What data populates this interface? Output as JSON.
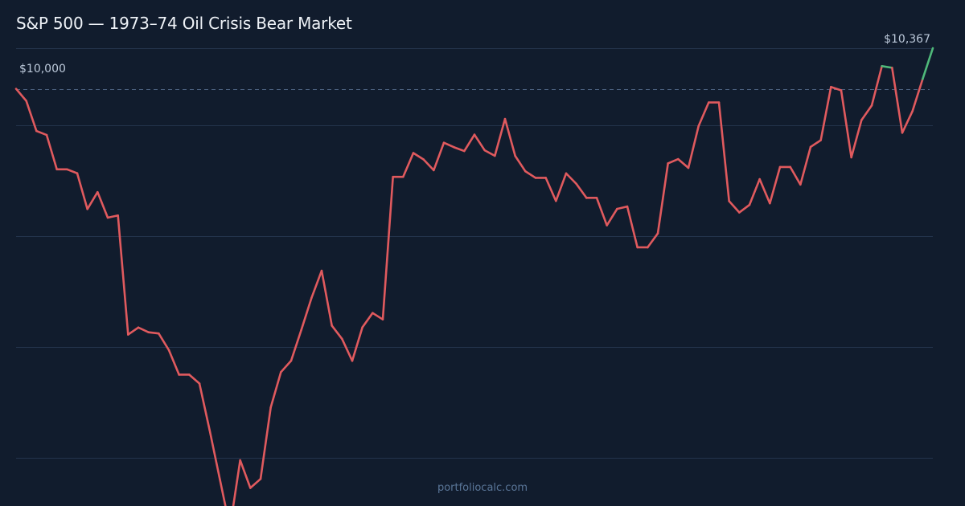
{
  "title": "S&P 500 — 1973–74 Oil Crisis Bear Market",
  "footer": {
    "brand": "portfoliocalc.com"
  },
  "colors": {
    "background": "#111c2d",
    "gridline": "#24344c",
    "baseline": "#4d6382",
    "loss_line": "#e05a5e",
    "gain_line": "#4fb97a",
    "label_text": "#bcc9da"
  },
  "chart_data": {
    "type": "line",
    "title": "S&P 500 — 1973–74 Oil Crisis Bear Market",
    "xlabel": "",
    "ylabel": "",
    "baseline": 10000,
    "baseline_label": "$10,000",
    "end_label": "$10,367",
    "ylim": [
      6300,
      10667
    ],
    "grid": true,
    "horizontal_gridlines": [
      10367,
      9667,
      8667,
      7667,
      6667
    ],
    "series": [
      {
        "values": [
          10000,
          9891,
          9619,
          9583,
          9273,
          9273,
          9237,
          8914,
          9067,
          8836,
          8856,
          7780,
          7844,
          7801,
          7790,
          7640,
          7418,
          7418,
          7338,
          6917,
          6476,
          6035,
          6645,
          6395,
          6476,
          7122,
          7441,
          7544,
          7822,
          8110,
          8357,
          7861,
          7741,
          7543,
          7846,
          7975,
          7917,
          9205,
          9205,
          9420,
          9362,
          9265,
          9513,
          9472,
          9438,
          9586,
          9445,
          9395,
          9728,
          9394,
          9255,
          9196,
          9196,
          8987,
          9236,
          9142,
          9015,
          9015,
          8767,
          8915,
          8937,
          8568,
          8568,
          8694,
          9326,
          9365,
          9286,
          9663,
          9877,
          9877,
          8986,
          8883,
          8952,
          9184,
          8966,
          9294,
          9294,
          9135,
          9475,
          9536,
          10017,
          9986,
          9381,
          9718,
          9849,
          10205,
          10190,
          9603,
          9798,
          10088,
          10367
        ]
      }
    ]
  }
}
